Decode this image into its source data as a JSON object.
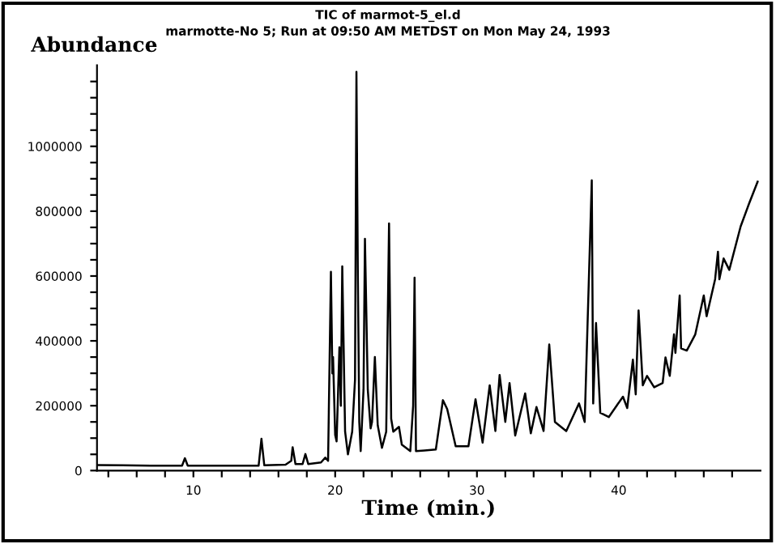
{
  "chart_data": {
    "type": "line",
    "title": "TIC of marmot-5_el.d",
    "subtitle": "marmotte-No 5; Run at 09:50 AM METDST on Mon May 24, 1993",
    "xlabel": "Time (min.)",
    "ylabel": "Abundance",
    "series": [
      {
        "color": "#000000",
        "x": [
          3.2,
          5,
          7,
          9.2,
          9.4,
          9.6,
          12,
          14.6,
          14.8,
          15.0,
          16.5,
          16.9,
          17.0,
          17.2,
          17.7,
          17.9,
          18.1,
          19.0,
          19.3,
          19.5,
          19.7,
          19.8,
          19.85,
          20.0,
          20.1,
          20.3,
          20.4,
          20.5,
          20.7,
          20.9,
          21.2,
          21.4,
          21.5,
          21.6,
          21.7,
          21.8,
          22.0,
          22.1,
          22.3,
          22.5,
          22.6,
          22.8,
          23.0,
          23.3,
          23.6,
          23.8,
          23.95,
          24.1,
          24.5,
          24.7,
          25.3,
          25.5,
          25.6,
          25.7,
          26.3,
          27.1,
          27.6,
          27.9,
          28.5,
          29.4,
          29.9,
          30.4,
          30.9,
          31.3,
          31.6,
          32.0,
          32.3,
          32.7,
          33.4,
          33.8,
          34.2,
          34.7,
          35.1,
          35.5,
          36.3,
          37.2,
          37.6,
          38.1,
          38.2,
          38.4,
          38.7,
          39.3,
          40.3,
          40.6,
          41.0,
          41.2,
          41.4,
          41.7,
          42.0,
          42.5,
          43.1,
          43.3,
          43.6,
          43.9,
          44.0,
          44.3,
          44.4,
          44.8,
          45.4,
          46.0,
          46.2,
          46.8,
          47.0,
          47.1,
          47.4,
          47.8,
          48.6,
          49.2,
          49.8
        ],
        "values": [
          17000,
          16000,
          15000,
          15000,
          38000,
          15000,
          15000,
          15000,
          98000,
          16000,
          18000,
          30000,
          72000,
          20000,
          20000,
          51000,
          20000,
          25000,
          40000,
          30000,
          613000,
          300000,
          350000,
          110000,
          90000,
          380000,
          200000,
          630000,
          120000,
          50000,
          120000,
          280000,
          1230000,
          600000,
          150000,
          60000,
          250000,
          715000,
          250000,
          130000,
          150000,
          350000,
          140000,
          70000,
          120000,
          762000,
          160000,
          120000,
          135000,
          80000,
          60000,
          200000,
          595000,
          60000,
          62000,
          65000,
          217000,
          190000,
          75000,
          75000,
          220000,
          86000,
          263000,
          122000,
          295000,
          150000,
          270000,
          108000,
          238000,
          115000,
          196000,
          122000,
          389000,
          150000,
          122000,
          207000,
          150000,
          895000,
          207000,
          455000,
          178000,
          165000,
          228000,
          193000,
          342000,
          235000,
          494000,
          263000,
          292000,
          257000,
          270000,
          349000,
          292000,
          420000,
          363000,
          540000,
          377000,
          370000,
          420000,
          540000,
          476000,
          590000,
          675000,
          590000,
          654000,
          619000,
          753000,
          824000,
          891000
        ]
      }
    ],
    "xlim": [
      3.2,
      50
    ],
    "ylim": [
      0,
      1250000
    ],
    "xticks": [
      {
        "value": 4,
        "label": null
      },
      {
        "value": 6,
        "label": null
      },
      {
        "value": 8,
        "label": null
      },
      10,
      {
        "value": 12,
        "label": null
      },
      {
        "value": 14,
        "label": null
      },
      {
        "value": 16,
        "label": null
      },
      {
        "value": 18,
        "label": null
      },
      20,
      {
        "value": 22,
        "label": null
      },
      {
        "value": 24,
        "label": null
      },
      {
        "value": 26,
        "label": null
      },
      {
        "value": 28,
        "label": null
      },
      30,
      {
        "value": 32,
        "label": null
      },
      {
        "value": 34,
        "label": null
      },
      {
        "value": 36,
        "label": null
      },
      {
        "value": 38,
        "label": null
      },
      40,
      {
        "value": 42,
        "label": null
      },
      {
        "value": 44,
        "label": null
      },
      {
        "value": 46,
        "label": null
      },
      {
        "value": 48,
        "label": null
      }
    ],
    "yticks": [
      0,
      {
        "value": 50000,
        "label": null
      },
      {
        "value": 100000,
        "label": null
      },
      {
        "value": 150000,
        "label": null
      },
      200000,
      {
        "value": 250000,
        "label": null
      },
      {
        "value": 300000,
        "label": null
      },
      {
        "value": 350000,
        "label": null
      },
      400000,
      {
        "value": 450000,
        "label": null
      },
      {
        "value": 500000,
        "label": null
      },
      {
        "value": 550000,
        "label": null
      },
      600000,
      {
        "value": 650000,
        "label": null
      },
      {
        "value": 700000,
        "label": null
      },
      {
        "value": 750000,
        "label": null
      },
      800000,
      {
        "value": 850000,
        "label": null
      },
      {
        "value": 900000,
        "label": null
      },
      {
        "value": 950000,
        "label": null
      },
      1000000,
      {
        "value": 1050000,
        "label": null
      },
      {
        "value": 1100000,
        "label": null
      },
      {
        "value": 1150000,
        "label": null
      },
      {
        "value": 1200000,
        "label": null
      }
    ],
    "grid": false,
    "legend": false,
    "marker": "none",
    "line_style": "solid"
  }
}
